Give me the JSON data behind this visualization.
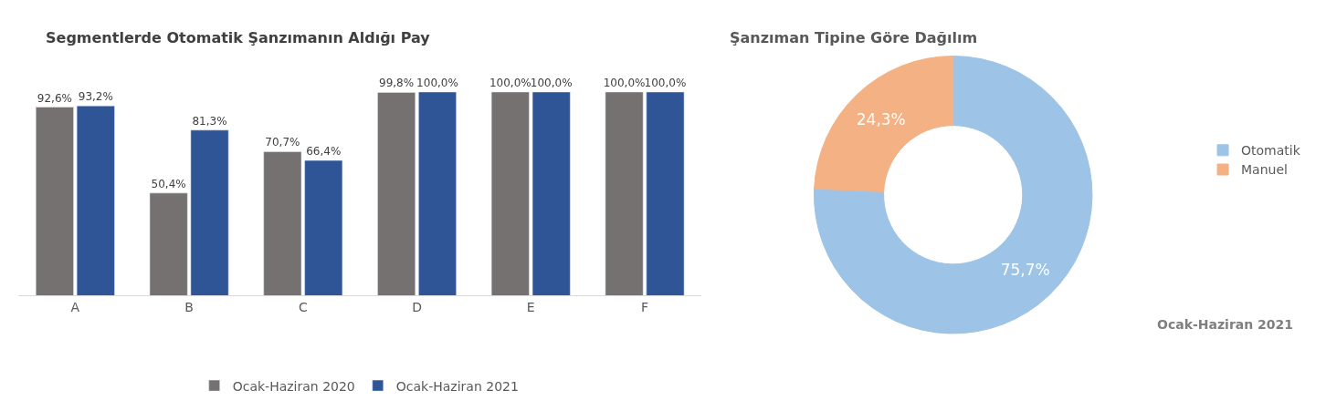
{
  "chart_data": [
    {
      "type": "bar",
      "title": "Segmentlerde Otomatik Şanzımanın Aldığı Pay",
      "categories": [
        "A",
        "B",
        "C",
        "D",
        "E",
        "F"
      ],
      "tick_labels": "x",
      "legend": "bottom",
      "series": [
        {
          "name": "Ocak-Haziran 2020",
          "color": "#767171",
          "values": [
            92.6,
            50.4,
            70.7,
            99.8,
            100.0,
            100.0
          ],
          "value_labels": [
            "92,6%",
            "50,4%",
            "70,7%",
            "99,8%",
            "100,0%",
            "100,0%"
          ]
        },
        {
          "name": "Ocak-Haziran 2021",
          "color": "#2f5597",
          "values": [
            93.2,
            81.3,
            66.4,
            100.0,
            100.0,
            100.0
          ],
          "value_labels": [
            "93,2%",
            "81,3%",
            "66,4%",
            "100,0%",
            "100,0%",
            "100,0%"
          ]
        }
      ]
    },
    {
      "type": "donut",
      "title": "Şanzıman Tipine Göre Dağılım",
      "categories": [
        "Otomatik",
        "Manuel"
      ],
      "values": [
        75.7,
        24.3
      ],
      "colors": [
        "#9dc3e6",
        "#f4b183"
      ],
      "value_labels": [
        "75,7%",
        "24,3%"
      ],
      "legend": "right",
      "annotations": [
        "Ocak-Haziran 2021"
      ]
    }
  ]
}
